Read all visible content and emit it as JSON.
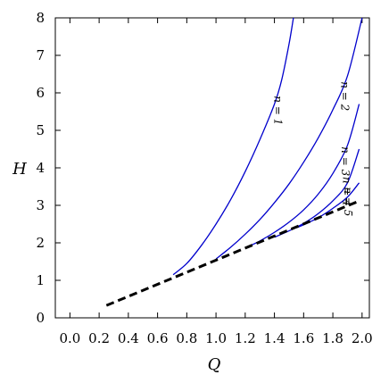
{
  "chart_data": {
    "type": "line",
    "xlabel": "Q",
    "ylabel": "H",
    "xlim": [
      -0.1,
      2.05
    ],
    "ylim": [
      0,
      8
    ],
    "xticks": [
      "0.0",
      "0.2",
      "0.4",
      "0.6",
      "0.8",
      "1.0",
      "1.2",
      "1.4",
      "1.6",
      "1.8",
      "2.0"
    ],
    "yticks": [
      "0",
      "1",
      "2",
      "3",
      "4",
      "5",
      "6",
      "7",
      "8"
    ],
    "grid": false,
    "series": [
      {
        "name": "n = 1",
        "color": "#0000cc",
        "style": "solid",
        "x": [
          0.707,
          0.8,
          0.9,
          1.0,
          1.1,
          1.2,
          1.3,
          1.4,
          1.45,
          1.5,
          1.53
        ],
        "y": [
          1.15,
          1.45,
          1.93,
          2.5,
          3.15,
          3.9,
          4.75,
          5.7,
          6.35,
          7.3,
          8.0
        ]
      },
      {
        "name": "n = 2",
        "color": "#0000cc",
        "style": "solid",
        "x": [
          1.0,
          1.1,
          1.2,
          1.3,
          1.4,
          1.5,
          1.6,
          1.7,
          1.8,
          1.9,
          2.0
        ],
        "y": [
          1.57,
          1.88,
          2.23,
          2.62,
          3.07,
          3.57,
          4.15,
          4.8,
          5.55,
          6.45,
          8.0
        ]
      },
      {
        "name": "n = 3",
        "color": "#0000cc",
        "style": "solid",
        "x": [
          1.22,
          1.3,
          1.4,
          1.5,
          1.6,
          1.7,
          1.8,
          1.9,
          1.98
        ],
        "y": [
          1.9,
          2.05,
          2.28,
          2.55,
          2.88,
          3.3,
          3.85,
          4.6,
          5.7
        ]
      },
      {
        "name": "n = 4",
        "color": "#0000cc",
        "style": "solid",
        "x": [
          1.4,
          1.5,
          1.6,
          1.7,
          1.8,
          1.9,
          1.98
        ],
        "y": [
          2.15,
          2.32,
          2.52,
          2.78,
          3.12,
          3.6,
          4.5
        ]
      },
      {
        "name": "n = 5",
        "color": "#0000cc",
        "style": "solid",
        "x": [
          1.55,
          1.6,
          1.7,
          1.8,
          1.9,
          1.98
        ],
        "y": [
          2.4,
          2.48,
          2.67,
          2.92,
          3.22,
          3.6
        ]
      },
      {
        "name": "",
        "color": "#000000",
        "style": "dashed",
        "x": [
          0.25,
          1.97
        ],
        "y": [
          0.33,
          3.1
        ]
      }
    ]
  }
}
